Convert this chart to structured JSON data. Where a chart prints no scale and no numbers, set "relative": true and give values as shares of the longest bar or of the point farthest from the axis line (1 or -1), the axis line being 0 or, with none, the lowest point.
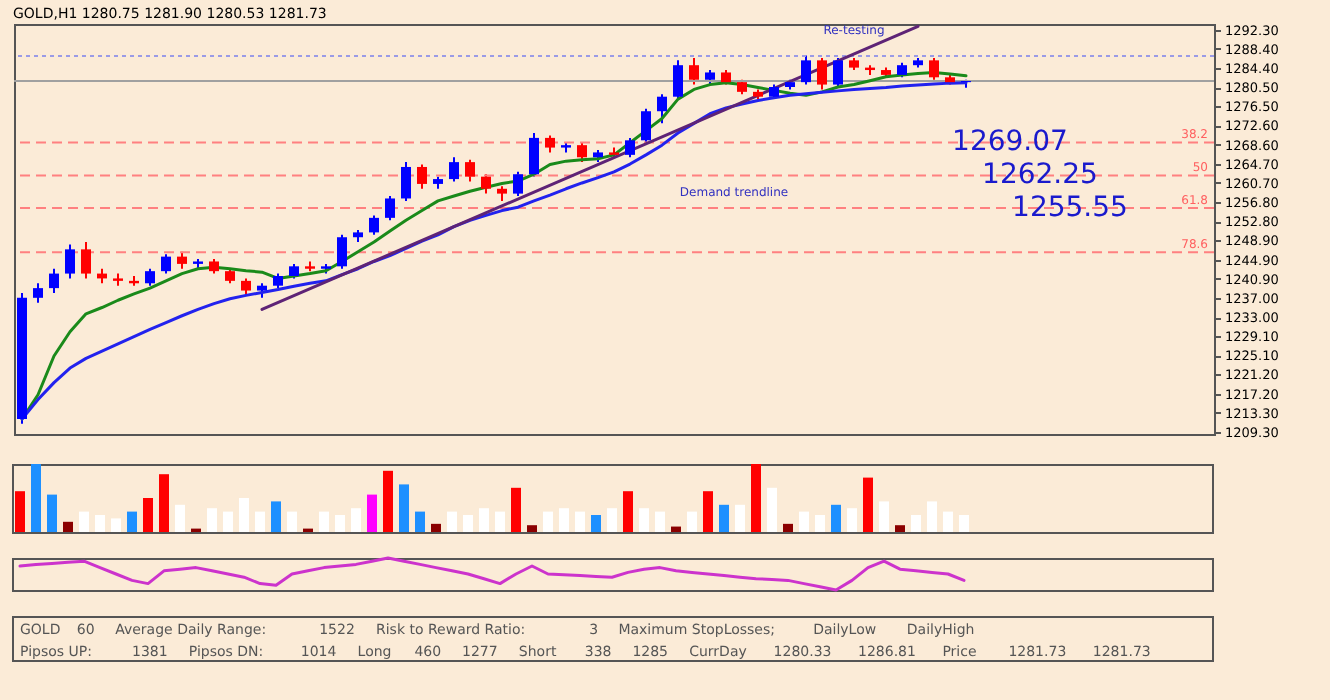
{
  "chart_data": [
    {
      "type": "candlestick",
      "title": "GOLD,H1 1280.75 1281.90 1280.53 1281.73",
      "categories": [
        null,
        null,
        null,
        null,
        null,
        null,
        null,
        null,
        null,
        null,
        null,
        null,
        null,
        null,
        null,
        null,
        null,
        null,
        null,
        null,
        null,
        null,
        null,
        null,
        null,
        null,
        null,
        null,
        null,
        null,
        null,
        null,
        null,
        null,
        null,
        null,
        null,
        null,
        null,
        null,
        null,
        null,
        null,
        null,
        null,
        null,
        null,
        null,
        null,
        null,
        null,
        null,
        null,
        null,
        null,
        null,
        null,
        null,
        null,
        null
      ],
      "ohlc": [
        [
          1212,
          1238,
          1211,
          1237
        ],
        [
          1237,
          1240,
          1236,
          1239
        ],
        [
          1239,
          1243,
          1238,
          1242
        ],
        [
          1242,
          1248,
          1241,
          1247
        ],
        [
          1247,
          1248.5,
          1241,
          1242
        ],
        [
          1242,
          1243,
          1240,
          1241
        ],
        [
          1241,
          1242,
          1239.5,
          1240.5
        ],
        [
          1240.5,
          1241.5,
          1239.5,
          1240
        ],
        [
          1240,
          1243,
          1239.5,
          1242.5
        ],
        [
          1242.5,
          1246,
          1242,
          1245.5
        ],
        [
          1245.5,
          1246.5,
          1243,
          1244
        ],
        [
          1244,
          1245,
          1243,
          1244.5
        ],
        [
          1244.5,
          1245,
          1242,
          1242.5
        ],
        [
          1242.5,
          1243,
          1240,
          1240.5
        ],
        [
          1240.5,
          1241,
          1237.5,
          1238.5
        ],
        [
          1238.5,
          1240,
          1237,
          1239.5
        ],
        [
          1239.5,
          1242,
          1239,
          1241.5
        ],
        [
          1241.5,
          1244,
          1241,
          1243.5
        ],
        [
          1243.5,
          1244.5,
          1242.5,
          1243
        ],
        [
          1243,
          1244,
          1242,
          1243.5
        ],
        [
          1243.5,
          1250,
          1243,
          1249.5
        ],
        [
          1249.5,
          1251,
          1248.5,
          1250.5
        ],
        [
          1250.5,
          1254,
          1250,
          1253.5
        ],
        [
          1253.5,
          1258,
          1253,
          1257.5
        ],
        [
          1257.5,
          1265,
          1257,
          1264
        ],
        [
          1264,
          1264.5,
          1259.5,
          1260.5
        ],
        [
          1260.5,
          1262,
          1259.5,
          1261.5
        ],
        [
          1261.5,
          1266,
          1261,
          1265
        ],
        [
          1265,
          1265.5,
          1261,
          1262
        ],
        [
          1262,
          1262.5,
          1258.5,
          1259.5
        ],
        [
          1259.5,
          1260,
          1257,
          1258.5
        ],
        [
          1258.5,
          1263,
          1258,
          1262.5
        ],
        [
          1262.5,
          1271,
          1262,
          1270
        ],
        [
          1270,
          1270.5,
          1267,
          1268
        ],
        [
          1268,
          1269,
          1267,
          1268.5
        ],
        [
          1268.5,
          1269,
          1265,
          1266
        ],
        [
          1266,
          1267.5,
          1265,
          1267
        ],
        [
          1267,
          1268,
          1266,
          1266.5
        ],
        [
          1266.5,
          1270,
          1266,
          1269.5
        ],
        [
          1269.5,
          1276,
          1269,
          1275.5
        ],
        [
          1275.5,
          1279,
          1273,
          1278.5
        ],
        [
          1278.5,
          1286,
          1278,
          1285
        ],
        [
          1285,
          1286.5,
          1281,
          1282
        ],
        [
          1282,
          1284,
          1281,
          1283.5
        ],
        [
          1283.5,
          1284,
          1281,
          1281.5
        ],
        [
          1281.5,
          1282,
          1279,
          1279.5
        ],
        [
          1279.5,
          1280,
          1278,
          1278.5
        ],
        [
          1278.5,
          1281,
          1278,
          1280.5
        ],
        [
          1280.5,
          1282,
          1280,
          1281.5
        ],
        [
          1281.5,
          1287,
          1281,
          1286
        ],
        [
          1286,
          1286.5,
          1280,
          1281
        ],
        [
          1281,
          1286.5,
          1280.5,
          1286
        ],
        [
          1286,
          1286.5,
          1284,
          1284.5
        ],
        [
          1284.5,
          1285,
          1283,
          1284
        ],
        [
          1284,
          1284.5,
          1282.5,
          1283
        ],
        [
          1283,
          1285.5,
          1282.5,
          1285
        ],
        [
          1285,
          1286.5,
          1284.5,
          1286
        ],
        [
          1286,
          1286.5,
          1282,
          1282.5
        ],
        [
          1282.5,
          1283,
          1281,
          1281.5
        ],
        [
          1281.5,
          1282,
          1280.33,
          1281.73
        ]
      ],
      "colors": [
        "#0000ff",
        "#0000ff",
        "#0000ff",
        "#0000ff",
        "#ff0000",
        "#ff0000",
        "#ff0000",
        "#ff0000",
        "#0000ff",
        "#0000ff",
        "#ff0000",
        "#0000ff",
        "#ff0000",
        "#ff0000",
        "#ff0000",
        "#0000ff",
        "#0000ff",
        "#0000ff",
        "#ff0000",
        "#0000ff",
        "#0000ff",
        "#0000ff",
        "#0000ff",
        "#0000ff",
        "#0000ff",
        "#ff0000",
        "#0000ff",
        "#0000ff",
        "#ff0000",
        "#ff0000",
        "#ff0000",
        "#0000ff",
        "#0000ff",
        "#ff0000",
        "#0000ff",
        "#ff0000",
        "#0000ff",
        "#ff0000",
        "#0000ff",
        "#0000ff",
        "#0000ff",
        "#0000ff",
        "#ff0000",
        "#0000ff",
        "#ff0000",
        "#ff0000",
        "#ff0000",
        "#0000ff",
        "#0000ff",
        "#0000ff",
        "#ff0000",
        "#0000ff",
        "#ff0000",
        "#ff0000",
        "#ff0000",
        "#0000ff",
        "#0000ff",
        "#ff0000",
        "#ff0000",
        "#0000ff"
      ],
      "series": [
        {
          "type": "line",
          "color": "#1a8a1a",
          "values": [
            1212,
            1217,
            1225,
            1230,
            1233.7,
            1235,
            1236.5,
            1237.8,
            1239,
            1240.5,
            1242,
            1243,
            1243.3,
            1243,
            1242.6,
            1242.3,
            1241,
            1241.5,
            1242,
            1242.6,
            1244.5,
            1246.5,
            1248.5,
            1250.8,
            1253,
            1255,
            1257,
            1258,
            1259,
            1259.8,
            1260.6,
            1261.1,
            1262.5,
            1264.5,
            1265.2,
            1265.5,
            1265.7,
            1266.5,
            1269,
            1271.5,
            1274,
            1278,
            1280,
            1281,
            1281.4,
            1281,
            1280.4,
            1279.8,
            1279.2,
            1278.8,
            1279.5,
            1280.5,
            1281,
            1281.8,
            1282.6,
            1283,
            1283.3,
            1283.5,
            1283.2,
            1282.8
          ]
        },
        {
          "type": "line",
          "color": "#2222ee",
          "values": [
            1212,
            1216,
            1219.5,
            1222.5,
            1224.5,
            1226,
            1227.5,
            1229,
            1230.5,
            1231.9,
            1233.3,
            1234.6,
            1235.8,
            1236.8,
            1237.5,
            1238.1,
            1238.7,
            1239.4,
            1240,
            1240.5,
            1241.8,
            1243,
            1244.5,
            1245.7,
            1247.2,
            1248.7,
            1250,
            1251.7,
            1253,
            1254,
            1255,
            1255.7,
            1257,
            1258.2,
            1259.5,
            1260.7,
            1261.8,
            1263,
            1264.6,
            1266.5,
            1268.5,
            1271,
            1273,
            1275,
            1276.2,
            1277,
            1277.7,
            1278.3,
            1278.8,
            1279.1,
            1279.4,
            1279.7,
            1280,
            1280.2,
            1280.4,
            1280.7,
            1280.9,
            1281.1,
            1281.3,
            1281.4
          ]
        },
        {
          "type": "line",
          "color": "#5e2376",
          "values": [
            null,
            null,
            null,
            null,
            null,
            null,
            null,
            null,
            null,
            null,
            null,
            null,
            null,
            null,
            null,
            1234.6,
            null,
            null,
            null,
            null,
            null,
            null,
            null,
            null,
            null,
            null,
            null,
            null,
            null,
            null,
            null,
            null,
            null,
            null,
            null,
            null,
            null,
            null,
            null,
            null,
            null,
            null,
            null,
            null,
            null,
            null,
            null,
            null,
            null,
            null,
            null,
            null,
            null,
            null,
            null,
            null,
            1293,
            null,
            null,
            null
          ]
        }
      ],
      "ylim": [
        1208.9,
        1293.5
      ],
      "yticks": [
        {
          "value": 1209.3,
          "label": "1209.30"
        },
        {
          "value": 1213.3,
          "label": "1213.30"
        },
        {
          "value": 1217.2,
          "label": "1217.20"
        },
        {
          "value": 1221.2,
          "label": "1221.20"
        },
        {
          "value": 1225.1,
          "label": "1225.10"
        },
        {
          "value": 1229.1,
          "label": "1229.10"
        },
        {
          "value": 1233,
          "label": "1233.00"
        },
        {
          "value": 1237,
          "label": "1237.00"
        },
        {
          "value": 1240.9,
          "label": "1240.90"
        },
        {
          "value": 1244.9,
          "label": "1244.90"
        },
        {
          "value": 1248.9,
          "label": "1248.90"
        },
        {
          "value": 1252.8,
          "label": "1252.80"
        },
        {
          "value": 1256.8,
          "label": "1256.80"
        },
        {
          "value": 1260.7,
          "label": "1260.70"
        },
        {
          "value": 1264.7,
          "label": "1264.70"
        },
        {
          "value": 1268.6,
          "label": "1268.60"
        },
        {
          "value": 1272.6,
          "label": "1272.60"
        },
        {
          "value": 1276.5,
          "label": "1276.50"
        },
        {
          "value": 1280.5,
          "label": "1280.50"
        },
        {
          "value": 1284.4,
          "label": "1284.40"
        },
        {
          "value": 1288.4,
          "label": "1288.40"
        },
        {
          "value": 1292.3,
          "label": "1292.30"
        }
      ],
      "ref_lines": [
        {
          "axis": "y",
          "value": 1286.9,
          "label": null,
          "color": "#9a9ae6",
          "line_style": "dotted"
        },
        {
          "axis": "y",
          "value": 1281.73,
          "label": null,
          "color": "#a0a0a0",
          "line_style": "solid"
        },
        {
          "axis": "y",
          "value": 1269.07,
          "label": "1269.07",
          "color": "#ff8080",
          "line_style": "dashed"
        },
        {
          "axis": "y",
          "value": 1262.25,
          "label": "1262.25",
          "color": "#ff8080",
          "line_style": "dashed"
        },
        {
          "axis": "y",
          "value": 1255.55,
          "label": "1255.55",
          "color": "#ff8080",
          "line_style": "dashed"
        },
        {
          "axis": "y",
          "value": 1246.4,
          "label": null,
          "color": "#ff8080",
          "line_style": "dashed"
        }
      ],
      "annotations": [
        "Re-testing",
        "Demand trendline",
        {
          "text": "38.2",
          "y": 1269.07
        },
        {
          "text": "50",
          "y": 1262.25
        },
        {
          "text": "61.8",
          "y": 1255.55
        },
        {
          "text": "78.6",
          "y": 1246.4
        }
      ],
      "tick_labels": "y"
    },
    {
      "type": "bar",
      "relative": true,
      "categories": [
        null,
        null,
        null,
        null,
        null,
        null,
        null,
        null,
        null,
        null,
        null,
        null,
        null,
        null,
        null,
        null,
        null,
        null,
        null,
        null,
        null,
        null,
        null,
        null,
        null,
        null,
        null,
        null,
        null,
        null,
        null,
        null,
        null,
        null,
        null,
        null,
        null,
        null,
        null,
        null,
        null,
        null,
        null,
        null,
        null,
        null,
        null,
        null,
        null,
        null,
        null,
        null,
        null,
        null,
        null,
        null,
        null,
        null,
        null,
        null
      ],
      "values": [
        0.6,
        1.0,
        0.55,
        0.15,
        0.3,
        0.25,
        0.2,
        0.3,
        0.5,
        0.85,
        0.4,
        0.05,
        0.35,
        0.3,
        0.5,
        0.3,
        0.45,
        0.3,
        0.05,
        0.3,
        0.25,
        0.35,
        0.55,
        0.9,
        0.7,
        0.3,
        0.12,
        0.3,
        0.25,
        0.35,
        0.3,
        0.65,
        0.1,
        0.3,
        0.35,
        0.3,
        0.25,
        0.35,
        0.6,
        0.35,
        0.3,
        0.08,
        0.3,
        0.6,
        0.4,
        0.4,
        1.0,
        0.65,
        0.12,
        0.3,
        0.25,
        0.4,
        0.35,
        0.8,
        0.45,
        0.1,
        0.25,
        0.45,
        0.3,
        0.25
      ],
      "colors": [
        "#ff0000",
        "#1e90ff",
        "#1e90ff",
        "#8b0000",
        "#ffffff",
        "#ffffff",
        "#ffffff",
        "#1e90ff",
        "#ff0000",
        "#ff0000",
        "#ffffff",
        "#8b0000",
        "#ffffff",
        "#ffffff",
        "#ffffff",
        "#ffffff",
        "#1e90ff",
        "#ffffff",
        "#8b0000",
        "#ffffff",
        "#ffffff",
        "#ffffff",
        "#ff00ff",
        "#ff0000",
        "#1e90ff",
        "#1e90ff",
        "#8b0000",
        "#ffffff",
        "#ffffff",
        "#ffffff",
        "#ffffff",
        "#ff0000",
        "#8b0000",
        "#ffffff",
        "#ffffff",
        "#ffffff",
        "#1e90ff",
        "#ffffff",
        "#ff0000",
        "#ffffff",
        "#ffffff",
        "#8b0000",
        "#ffffff",
        "#ff0000",
        "#1e90ff",
        "#ffffff",
        "#ff0000",
        "#ffffff",
        "#8b0000",
        "#ffffff",
        "#ffffff",
        "#1e90ff",
        "#ffffff",
        "#ff0000",
        "#ffffff",
        "#8b0000",
        "#ffffff",
        "#ffffff",
        "#ffffff",
        "#ffffff"
      ],
      "tick_labels": false
    },
    {
      "type": "line",
      "relative": true,
      "categories": [
        null,
        null,
        null,
        null,
        null,
        null,
        null,
        null,
        null,
        null,
        null,
        null,
        null,
        null,
        null,
        null,
        null,
        null,
        null,
        null,
        null,
        null,
        null,
        null,
        null,
        null,
        null,
        null,
        null,
        null,
        null,
        null,
        null,
        null,
        null,
        null,
        null,
        null,
        null,
        null,
        null,
        null,
        null,
        null,
        null,
        null,
        null,
        null,
        null,
        null,
        null,
        null,
        null,
        null,
        null,
        null,
        null,
        null,
        null,
        null
      ],
      "series": [
        {
          "color": "#cc33cc",
          "values": [
            0.75,
            0.8,
            0.83,
            0.87,
            0.9,
            0.7,
            0.5,
            0.3,
            0.2,
            0.6,
            0.65,
            0.7,
            0.6,
            0.5,
            0.4,
            0.2,
            0.15,
            0.5,
            0.6,
            0.7,
            0.75,
            0.8,
            0.9,
            1.0,
            0.9,
            0.8,
            0.7,
            0.6,
            0.5,
            0.35,
            0.2,
            0.5,
            0.75,
            0.5,
            0.48,
            0.45,
            0.42,
            0.4,
            0.55,
            0.65,
            0.7,
            0.6,
            0.55,
            0.5,
            0.45,
            0.4,
            0.35,
            0.33,
            0.3,
            0.2,
            0.1,
            0.0,
            0.3,
            0.7,
            0.9,
            0.65,
            0.6,
            0.55,
            0.5,
            0.3
          ]
        }
      ],
      "tick_labels": false
    },
    {
      "type": "other",
      "annotations": [
        "GOLD",
        "60",
        "Average Daily Range:",
        "1522",
        "Risk to Reward Ratio:",
        "3",
        "Maximum StopLosses;",
        "DailyLow",
        "DailyHigh",
        "Pipsos UP:",
        "1381",
        "Pipsos DN:",
        "1014",
        "Long",
        "460",
        "1277",
        "Short",
        "338",
        "1285",
        "CurrDay",
        "1280.33",
        "1286.81",
        "Price",
        "1281.73",
        "1281.73"
      ]
    }
  ]
}
